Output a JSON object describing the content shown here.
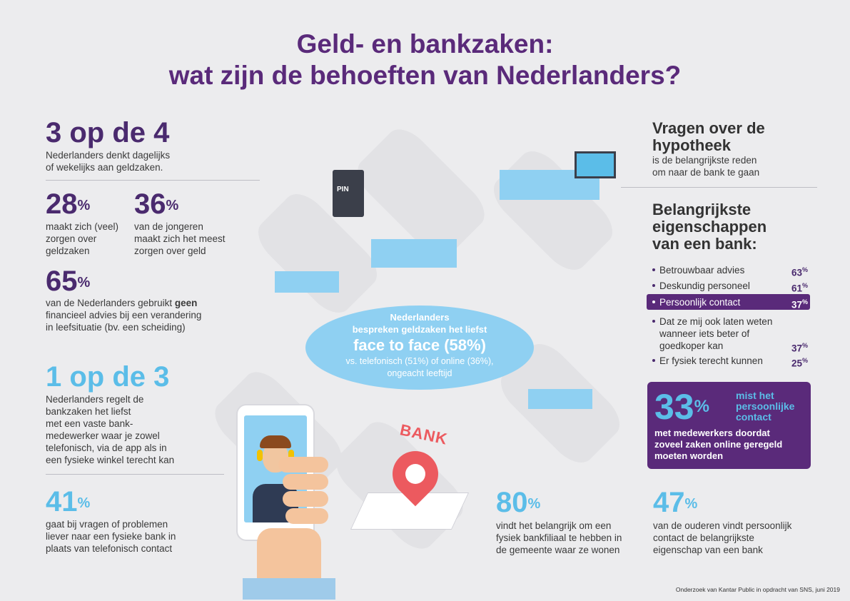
{
  "title": {
    "line1": "Geld- en bankzaken:",
    "line2": "wat zijn de behoeften van Nederlanders?"
  },
  "left": {
    "s1": {
      "big": "3 op de 4",
      "text1": "Nederlanders denkt dagelijks",
      "text2": "of wekelijks aan geldzaken."
    },
    "s2": {
      "num": "28",
      "unit": "%",
      "text1": "maakt zich (veel)",
      "text2": "zorgen over",
      "text3": "geldzaken"
    },
    "s3": {
      "num": "36",
      "unit": "%",
      "text1": "van de jongeren",
      "text2": "maakt zich het meest",
      "text3": "zorgen over geld"
    },
    "s4": {
      "num": "65",
      "unit": "%",
      "text1a": "van de Nederlanders gebruikt ",
      "text1b": "geen",
      "text2": "financieel advies bij een verandering",
      "text3": "in leefsituatie (bv. een scheiding)"
    },
    "s5": {
      "big": "1 op de 3",
      "lines": [
        "Nederlanders regelt de",
        "bankzaken het liefst",
        "met een vaste bank-",
        "medewerker waar je zowel",
        "telefonisch, via de app als in",
        "een fysieke winkel terecht kan"
      ]
    },
    "s6": {
      "num": "41",
      "unit": "%",
      "lines": [
        "gaat bij vragen of problemen",
        "liever naar een fysieke bank in",
        "plaats van telefonisch contact"
      ]
    }
  },
  "center": {
    "l1": "Nederlanders",
    "l2": "bespreken geldzaken het liefst",
    "big": "face to face (58%)",
    "l3": "vs. telefonisch (51%) of online (36%),",
    "l4": "ongeacht leeftijd",
    "atm_label": "PIN",
    "bank_sign": "BANK"
  },
  "bottom": {
    "s80": {
      "num": "80",
      "unit": "%",
      "lines": [
        "vindt het belangrijk om een",
        "fysiek bankfiliaal te hebben in",
        "de gemeente waar ze wonen"
      ]
    },
    "s47": {
      "num": "47",
      "unit": "%",
      "lines": [
        "van de ouderen vindt persoonlijk",
        "contact de belangrijkste",
        "eigenschap van een bank"
      ]
    }
  },
  "right": {
    "hyp": {
      "h1": "Vragen over de",
      "h2": "hypotheek",
      "t1": "is de belangrijkste reden",
      "t2": "om naar de bank te gaan"
    },
    "eig": {
      "h1": "Belangrijkste",
      "h2": "eigenschappen",
      "h3": "van een bank:"
    },
    "items": [
      {
        "label": "Betrouwbaar advies",
        "value": "63",
        "unit": "%"
      },
      {
        "label": "Deskundig personeel",
        "value": "61",
        "unit": "%"
      },
      {
        "label": "Persoonlijk contact",
        "value": "37",
        "unit": "%"
      },
      {
        "label1": "Dat ze mij ook laten weten",
        "label2": "wanneer iets beter of",
        "label3": "goedkoper kan",
        "value": "37",
        "unit": "%"
      },
      {
        "label": "Er fysiek terecht kunnen",
        "value": "25",
        "unit": "%"
      }
    ],
    "panel": {
      "num": "33",
      "unit": "%",
      "t1": "mist het",
      "t2": "persoonlijke",
      "t3": "contact",
      "t4": "met medewerkers doordat",
      "t5": "zoveel zaken online geregeld",
      "t6": "moeten worden"
    }
  },
  "footer": "Onderzoek van Kantar Public in opdracht van SNS, juni 2019",
  "colors": {
    "purple": "#5a2a7a",
    "blue": "#5bbde8",
    "background": "#ececee"
  }
}
